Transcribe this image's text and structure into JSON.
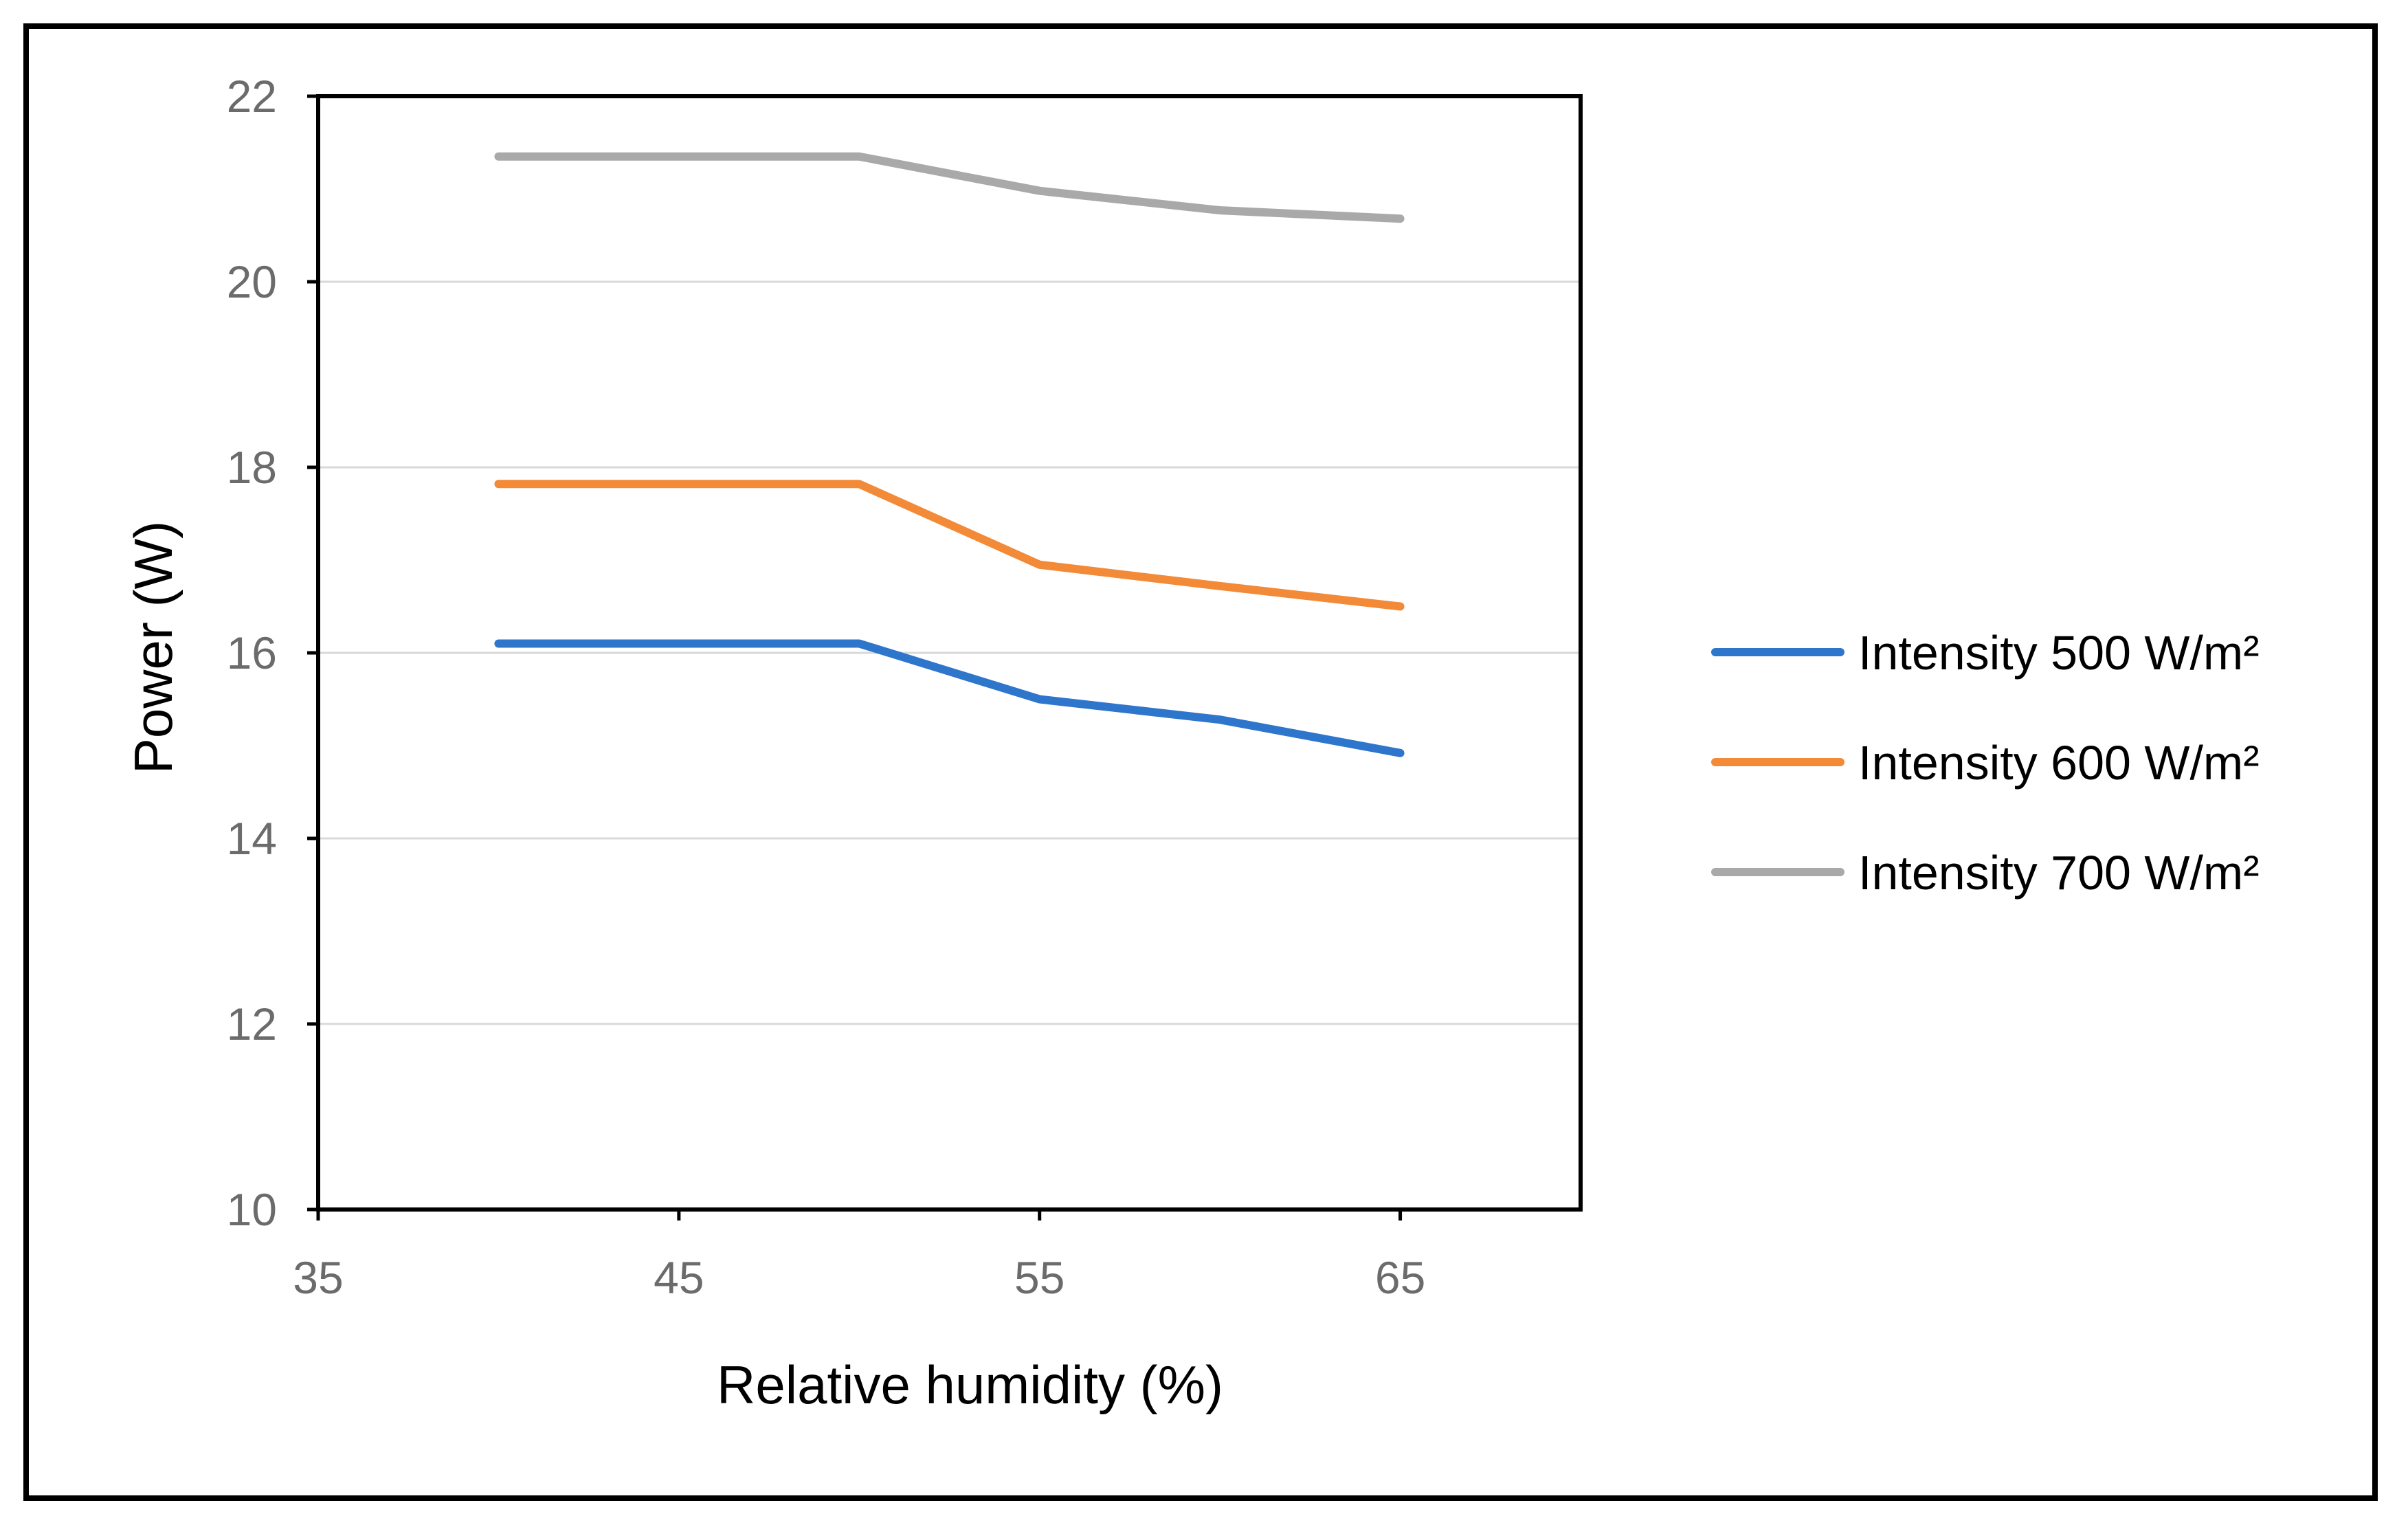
{
  "chart_data": {
    "type": "line",
    "title": "",
    "xlabel": "Relative humidity (%)",
    "ylabel": "Power (W)",
    "xlim": [
      35,
      70
    ],
    "ylim": [
      10,
      22
    ],
    "xticks": [
      35,
      45,
      55,
      65
    ],
    "yticks": [
      10,
      12,
      14,
      16,
      18,
      20,
      22
    ],
    "grid": "horizontal",
    "legend_position": "right",
    "x": [
      40,
      50,
      55,
      60,
      65
    ],
    "series": [
      {
        "name": "Intensity 500 W/m²",
        "color": "#2e75cc",
        "values": [
          16.1,
          16.1,
          15.5,
          15.28,
          14.92
        ]
      },
      {
        "name": "Intensity 600 W/m²",
        "color": "#f28a38",
        "values": [
          17.82,
          17.82,
          16.95,
          16.72,
          16.5
        ]
      },
      {
        "name": "Intensity 700 W/m²",
        "color": "#a9a9a9",
        "values": [
          21.35,
          21.35,
          20.98,
          20.77,
          20.68
        ]
      }
    ]
  }
}
